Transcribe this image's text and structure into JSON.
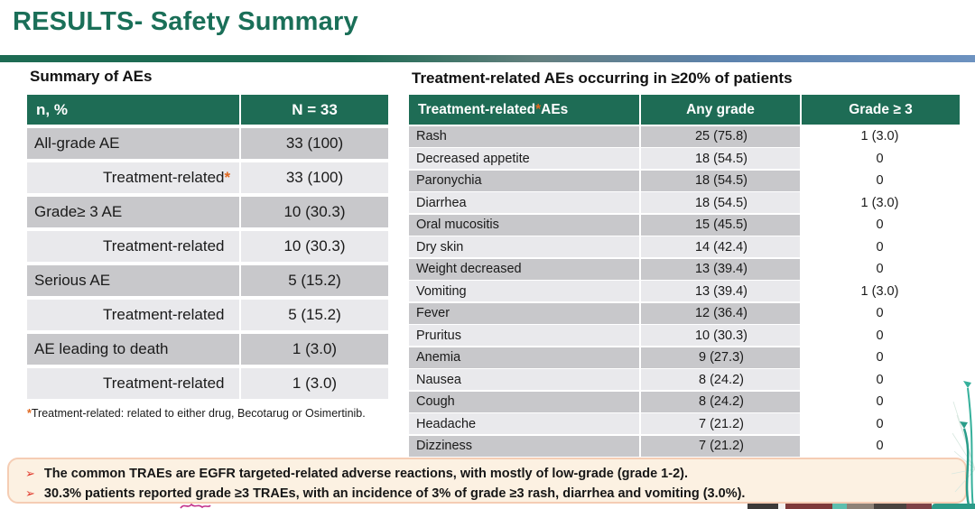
{
  "title": "RESULTS- Safety Summary",
  "colors": {
    "title_green": "#1a6f58",
    "header_green": "#1e6c55",
    "row_dark": "#c8c8cb",
    "row_light": "#e9e9ec",
    "asterisk_orange": "#e06820",
    "bullet_red": "#e0392b",
    "callout_bg": "#fcf1e2",
    "callout_border": "#f5cdb4"
  },
  "left_panel": {
    "heading": "Summary of AEs",
    "table": {
      "col1_header": "n, %",
      "col2_header": "N = 33",
      "rows": [
        {
          "label": "All-grade AE",
          "star": false,
          "indent": false,
          "value": "33 (100)"
        },
        {
          "label": "Treatment-related",
          "star": true,
          "indent": true,
          "value": "33 (100)"
        },
        {
          "label": "Grade≥ 3 AE",
          "star": false,
          "indent": false,
          "value": "10 (30.3)"
        },
        {
          "label": "Treatment-related",
          "star": false,
          "indent": true,
          "value": "10 (30.3)"
        },
        {
          "label": "Serious AE",
          "star": false,
          "indent": false,
          "value": "5 (15.2)"
        },
        {
          "label": "Treatment-related",
          "star": false,
          "indent": true,
          "value": "5 (15.2)"
        },
        {
          "label": "AE leading to death",
          "star": false,
          "indent": false,
          "value": "1 (3.0)"
        },
        {
          "label": "Treatment-related",
          "star": false,
          "indent": true,
          "value": "1 (3.0)"
        }
      ]
    },
    "footnote_star": "*",
    "footnote": "Treatment-related: related to either drug, Becotarug or Osimertinib."
  },
  "right_panel": {
    "heading": "Treatment-related AEs occurring in ≥20% of patients",
    "table": {
      "header1_pre": "Treatment-related",
      "header1_star": "*",
      "header1_post": " AEs",
      "header2": "Any grade",
      "header3": "Grade ≥ 3",
      "rows": [
        [
          "Rash",
          "25 (75.8)",
          "1 (3.0)"
        ],
        [
          "Decreased appetite",
          "18 (54.5)",
          "0"
        ],
        [
          "Paronychia",
          "18 (54.5)",
          "0"
        ],
        [
          "Diarrhea",
          "18 (54.5)",
          "1 (3.0)"
        ],
        [
          "Oral mucositis",
          "15 (45.5)",
          "0"
        ],
        [
          "Dry skin",
          "14 (42.4)",
          "0"
        ],
        [
          "Weight decreased",
          "13 (39.4)",
          "0"
        ],
        [
          "Vomiting",
          "13 (39.4)",
          "1 (3.0)"
        ],
        [
          "Fever",
          "12 (36.4)",
          "0"
        ],
        [
          "Pruritus",
          "10 (30.3)",
          "0"
        ],
        [
          "Anemia",
          "9 (27.3)",
          "0"
        ],
        [
          "Nausea",
          "8 (24.2)",
          "0"
        ],
        [
          "Cough",
          "8 (24.2)",
          "0"
        ],
        [
          "Headache",
          "7 (21.2)",
          "0"
        ],
        [
          "Dizziness",
          "7 (21.2)",
          "0"
        ]
      ]
    }
  },
  "callout": {
    "marker": "➢",
    "bullets": [
      "The common TRAEs are EGFR targeted-related adverse reactions, with mostly of low-grade (grade 1-2).",
      "30.3% patients reported grade ≥3 TRAEs, with an incidence of 3% of grade ≥3 rash, diarrhea and vomiting (3.0%)."
    ]
  }
}
